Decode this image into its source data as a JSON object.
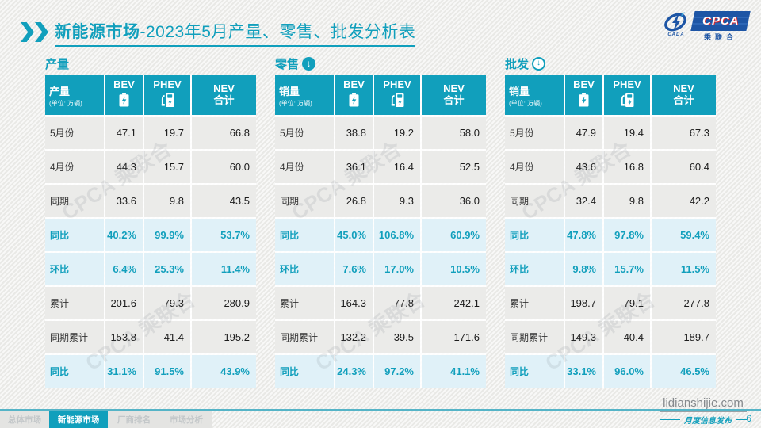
{
  "colors": {
    "accent": "#119fbc",
    "highlight_bg": "#e0f1f8",
    "row_bg": "#ebebe9",
    "logo_blue": "#1d55a5",
    "logo_red": "#d9262c"
  },
  "page": {
    "title_bold": "新能源市场",
    "title_rest": "-2023年5月产量、零售、批发分析表",
    "page_number": "6",
    "website": "lidianshijie.com",
    "website_sub": "月度信息发布"
  },
  "logo": {
    "cpca": "CPCA",
    "cada": "CADA",
    "chinese": "乘联合"
  },
  "watermark": "CPCA 乘联合",
  "nav": {
    "tabs": [
      {
        "label": "总体市场",
        "active": false
      },
      {
        "label": "新能源市场",
        "active": true
      },
      {
        "label": "厂商排名",
        "active": false
      },
      {
        "label": "市场分析",
        "active": false
      }
    ]
  },
  "arrow_glyph": "↓",
  "tables": [
    {
      "section_title": "产量",
      "arrow": "none",
      "header": {
        "label": "产量",
        "unit": "(单位: 万辆)",
        "columns": [
          {
            "text": "BEV",
            "icon": "battery"
          },
          {
            "text": "PHEV",
            "icon": "charger"
          },
          {
            "text": "NEV\n合计",
            "icon": "none"
          }
        ]
      },
      "rows": [
        {
          "label": "5月份",
          "values": [
            "47.1",
            "19.7",
            "66.8"
          ],
          "highlight": false
        },
        {
          "label": "4月份",
          "values": [
            "44.3",
            "15.7",
            "60.0"
          ],
          "highlight": false
        },
        {
          "label": "同期",
          "values": [
            "33.6",
            "9.8",
            "43.5"
          ],
          "highlight": false
        },
        {
          "label": "同比",
          "values": [
            "40.2%",
            "99.9%",
            "53.7%"
          ],
          "highlight": true
        },
        {
          "label": "环比",
          "values": [
            "6.4%",
            "25.3%",
            "11.4%"
          ],
          "highlight": true
        },
        {
          "label": "累计",
          "values": [
            "201.6",
            "79.3",
            "280.9"
          ],
          "highlight": false
        },
        {
          "label": "同期累计",
          "values": [
            "153.8",
            "41.4",
            "195.2"
          ],
          "highlight": false
        },
        {
          "label": "同比",
          "values": [
            "31.1%",
            "91.5%",
            "43.9%"
          ],
          "highlight": true
        }
      ]
    },
    {
      "section_title": "零售",
      "arrow": "filled",
      "header": {
        "label": "销量",
        "unit": "(单位: 万辆)",
        "columns": [
          {
            "text": "BEV",
            "icon": "battery"
          },
          {
            "text": "PHEV",
            "icon": "charger"
          },
          {
            "text": "NEV\n合计",
            "icon": "none"
          }
        ]
      },
      "rows": [
        {
          "label": "5月份",
          "values": [
            "38.8",
            "19.2",
            "58.0"
          ],
          "highlight": false
        },
        {
          "label": "4月份",
          "values": [
            "36.1",
            "16.4",
            "52.5"
          ],
          "highlight": false
        },
        {
          "label": "同期",
          "values": [
            "26.8",
            "9.3",
            "36.0"
          ],
          "highlight": false
        },
        {
          "label": "同比",
          "values": [
            "45.0%",
            "106.8%",
            "60.9%"
          ],
          "highlight": true
        },
        {
          "label": "环比",
          "values": [
            "7.6%",
            "17.0%",
            "10.5%"
          ],
          "highlight": true
        },
        {
          "label": "累计",
          "values": [
            "164.3",
            "77.8",
            "242.1"
          ],
          "highlight": false
        },
        {
          "label": "同期累计",
          "values": [
            "132.2",
            "39.5",
            "171.6"
          ],
          "highlight": false
        },
        {
          "label": "同比",
          "values": [
            "24.3%",
            "97.2%",
            "41.1%"
          ],
          "highlight": true
        }
      ]
    },
    {
      "section_title": "批发",
      "arrow": "ring",
      "header": {
        "label": "销量",
        "unit": "(单位: 万辆)",
        "columns": [
          {
            "text": "BEV",
            "icon": "battery"
          },
          {
            "text": "PHEV",
            "icon": "charger"
          },
          {
            "text": "NEV\n合计",
            "icon": "none"
          }
        ]
      },
      "rows": [
        {
          "label": "5月份",
          "values": [
            "47.9",
            "19.4",
            "67.3"
          ],
          "highlight": false
        },
        {
          "label": "4月份",
          "values": [
            "43.6",
            "16.8",
            "60.4"
          ],
          "highlight": false
        },
        {
          "label": "同期",
          "values": [
            "32.4",
            "9.8",
            "42.2"
          ],
          "highlight": false
        },
        {
          "label": "同比",
          "values": [
            "47.8%",
            "97.8%",
            "59.4%"
          ],
          "highlight": true
        },
        {
          "label": "环比",
          "values": [
            "9.8%",
            "15.7%",
            "11.5%"
          ],
          "highlight": true
        },
        {
          "label": "累计",
          "values": [
            "198.7",
            "79.1",
            "277.8"
          ],
          "highlight": false
        },
        {
          "label": "同期累计",
          "values": [
            "149.3",
            "40.4",
            "189.7"
          ],
          "highlight": false
        },
        {
          "label": "同比",
          "values": [
            "33.1%",
            "96.0%",
            "46.5%"
          ],
          "highlight": true
        }
      ]
    }
  ]
}
